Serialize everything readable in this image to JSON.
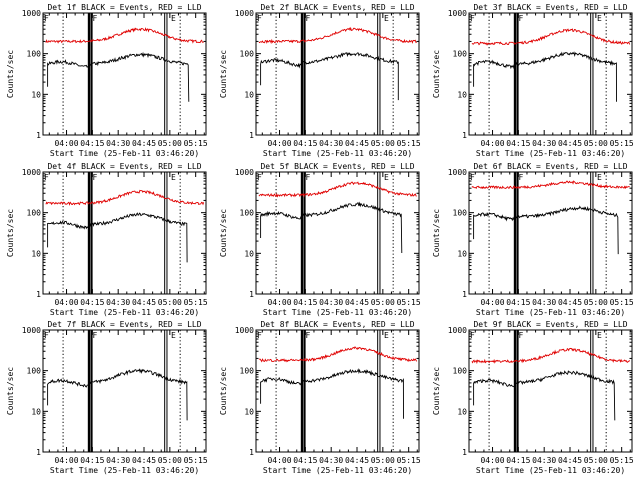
{
  "chart_data": [
    {
      "type": "line",
      "title": "Det 1f BLACK = Events, RED = LLD",
      "xlabel": "Start Time (25-Feb-11 03:46:20)",
      "ylabel": "Counts/sec",
      "yscale": "log",
      "ylim": [
        1,
        1000
      ],
      "yticks": [
        "1",
        "10",
        "100",
        "1000"
      ],
      "xlim": [
        "03:46:20",
        "05:21:00"
      ],
      "xticks": [
        "04:00",
        "04:15",
        "04:30",
        "04:45",
        "05:00",
        "05:15"
      ],
      "markers": [
        "F",
        "E",
        "F",
        "E"
      ],
      "series": [
        {
          "color": "#e00000",
          "start": "03:48:00",
          "end": "05:20:00",
          "base": 200,
          "peak": 400,
          "peak_time": "04:43"
        },
        {
          "color": "#000000",
          "start": "03:49:00",
          "end": "05:11:00",
          "base": 55,
          "peak": 95,
          "peak_time": "04:43"
        }
      ]
    },
    {
      "type": "line",
      "title": "Det 2f BLACK = Events, RED = LLD",
      "xlabel": "Start Time (25-Feb-11 03:46:20)",
      "ylabel": "Counts/sec",
      "yscale": "log",
      "ylim": [
        1,
        1000
      ],
      "yticks": [
        "1",
        "10",
        "100",
        "1000"
      ],
      "xlim": [
        "03:46:20",
        "05:21:00"
      ],
      "xticks": [
        "04:00",
        "04:15",
        "04:30",
        "04:45",
        "05:00",
        "05:15"
      ],
      "markers": [
        "F",
        "E",
        "F",
        "E"
      ],
      "series": [
        {
          "color": "#e00000",
          "start": "03:48:00",
          "end": "05:20:00",
          "base": 200,
          "peak": 400,
          "peak_time": "04:43"
        },
        {
          "color": "#000000",
          "start": "03:49:00",
          "end": "05:09:00",
          "base": 60,
          "peak": 100,
          "peak_time": "04:43"
        }
      ]
    },
    {
      "type": "line",
      "title": "Det 3f BLACK = Events, RED = LLD",
      "xlabel": "Start Time (25-Feb-11 03:46:20)",
      "ylabel": "Counts/sec",
      "yscale": "log",
      "ylim": [
        1,
        1000
      ],
      "yticks": [
        "1",
        "10",
        "100",
        "1000"
      ],
      "xlim": [
        "03:46:20",
        "05:21:00"
      ],
      "xticks": [
        "04:00",
        "04:15",
        "04:30",
        "04:45",
        "05:00",
        "05:15"
      ],
      "markers": [
        "F",
        "E",
        "F",
        "E"
      ],
      "series": [
        {
          "color": "#e00000",
          "start": "03:48:00",
          "end": "05:20:00",
          "base": 180,
          "peak": 380,
          "peak_time": "04:45"
        },
        {
          "color": "#000000",
          "start": "03:49:00",
          "end": "05:12:00",
          "base": 55,
          "peak": 100,
          "peak_time": "04:45"
        }
      ]
    },
    {
      "type": "line",
      "title": "Det 4f BLACK = Events, RED = LLD",
      "xlabel": "Start Time (25-Feb-11 03:46:20)",
      "ylabel": "Counts/sec",
      "yscale": "log",
      "ylim": [
        1,
        1000
      ],
      "yticks": [
        "1",
        "10",
        "100",
        "1000"
      ],
      "xlim": [
        "03:46:20",
        "05:21:00"
      ],
      "xticks": [
        "04:00",
        "04:15",
        "04:30",
        "04:45",
        "05:00",
        "05:15"
      ],
      "markers": [
        "F",
        "E",
        "F",
        "E"
      ],
      "series": [
        {
          "color": "#e00000",
          "start": "03:48:00",
          "end": "05:20:00",
          "base": 170,
          "peak": 330,
          "peak_time": "04:43"
        },
        {
          "color": "#000000",
          "start": "03:49:00",
          "end": "05:10:00",
          "base": 50,
          "peak": 90,
          "peak_time": "04:43"
        }
      ]
    },
    {
      "type": "line",
      "title": "Det 5f BLACK = Events, RED = LLD",
      "xlabel": "Start Time (25-Feb-11 03:46:20)",
      "ylabel": "Counts/sec",
      "yscale": "log",
      "ylim": [
        1,
        1000
      ],
      "yticks": [
        "1",
        "10",
        "100",
        "1000"
      ],
      "xlim": [
        "03:46:20",
        "05:21:00"
      ],
      "xticks": [
        "04:00",
        "04:15",
        "04:30",
        "04:45",
        "05:00",
        "05:15"
      ],
      "markers": [
        "F",
        "E",
        "F",
        "E"
      ],
      "series": [
        {
          "color": "#e00000",
          "start": "03:48:00",
          "end": "05:20:00",
          "base": 270,
          "peak": 540,
          "peak_time": "04:45"
        },
        {
          "color": "#000000",
          "start": "03:49:00",
          "end": "05:11:00",
          "base": 85,
          "peak": 160,
          "peak_time": "04:45"
        }
      ]
    },
    {
      "type": "line",
      "title": "Det 6f BLACK = Events, RED = LLD",
      "xlabel": "Start Time (25-Feb-11 03:46:20)",
      "ylabel": "Counts/sec",
      "yscale": "log",
      "ylim": [
        1,
        1000
      ],
      "yticks": [
        "1",
        "10",
        "100",
        "1000"
      ],
      "xlim": [
        "03:46:20",
        "05:21:00"
      ],
      "xticks": [
        "04:00",
        "04:15",
        "04:30",
        "04:45",
        "05:00",
        "05:15"
      ],
      "markers": [
        "F",
        "E",
        "F",
        "E"
      ],
      "series": [
        {
          "color": "#e00000",
          "start": "03:48:00",
          "end": "05:20:00",
          "base": 420,
          "peak": 560,
          "peak_time": "04:45"
        },
        {
          "color": "#000000",
          "start": "03:49:00",
          "end": "05:13:00",
          "base": 80,
          "peak": 130,
          "peak_time": "04:50"
        }
      ]
    },
    {
      "type": "line",
      "title": "Det 7f BLACK = Events, RED = LLD",
      "xlabel": "Start Time (25-Feb-11 03:46:20)",
      "ylabel": "Counts/sec",
      "yscale": "log",
      "ylim": [
        1,
        1000
      ],
      "yticks": [
        "1",
        "10",
        "100",
        "1000"
      ],
      "xlim": [
        "03:46:20",
        "05:21:00"
      ],
      "xticks": [
        "04:00",
        "04:15",
        "04:30",
        "04:45",
        "05:00",
        "05:15"
      ],
      "markers": [
        "F",
        "E",
        "F",
        "E"
      ],
      "series": [
        {
          "color": "#000000",
          "start": "03:49:00",
          "end": "05:10:00",
          "base": 50,
          "peak": 100,
          "peak_time": "04:42"
        }
      ]
    },
    {
      "type": "line",
      "title": "Det 8f BLACK = Events, RED = LLD",
      "xlabel": "Start Time (25-Feb-11 03:46:20)",
      "ylabel": "Counts/sec",
      "yscale": "log",
      "ylim": [
        1,
        1000
      ],
      "yticks": [
        "1",
        "10",
        "100",
        "1000"
      ],
      "xlim": [
        "03:46:20",
        "05:21:00"
      ],
      "xticks": [
        "04:00",
        "04:15",
        "04:30",
        "04:45",
        "05:00",
        "05:15"
      ],
      "markers": [
        "F",
        "E",
        "F",
        "E"
      ],
      "series": [
        {
          "color": "#e00000",
          "start": "03:48:00",
          "end": "05:20:00",
          "base": 180,
          "peak": 360,
          "peak_time": "04:45"
        },
        {
          "color": "#000000",
          "start": "03:49:00",
          "end": "05:12:00",
          "base": 55,
          "peak": 100,
          "peak_time": "04:45"
        }
      ]
    },
    {
      "type": "line",
      "title": "Det 9f BLACK = Events, RED = LLD",
      "xlabel": "Start Time (25-Feb-11 03:46:20)",
      "ylabel": "Counts/sec",
      "yscale": "log",
      "ylim": [
        1,
        1000
      ],
      "yticks": [
        "1",
        "10",
        "100",
        "1000"
      ],
      "xlim": [
        "03:46:20",
        "05:21:00"
      ],
      "xticks": [
        "04:00",
        "04:15",
        "04:30",
        "04:45",
        "05:00",
        "05:15"
      ],
      "markers": [
        "F",
        "E",
        "F",
        "E"
      ],
      "series": [
        {
          "color": "#e00000",
          "start": "03:48:00",
          "end": "05:20:00",
          "base": 170,
          "peak": 330,
          "peak_time": "04:45"
        },
        {
          "color": "#000000",
          "start": "03:49:00",
          "end": "05:11:00",
          "base": 50,
          "peak": 90,
          "peak_time": "04:45"
        }
      ]
    }
  ],
  "overlay": {
    "dotted_lines": [
      "03:58:00",
      "05:06:00"
    ],
    "thick_lines": [
      "04:13:00",
      "04:14:30"
    ],
    "thin_lines": [
      "04:57:00",
      "04:58:20"
    ]
  }
}
